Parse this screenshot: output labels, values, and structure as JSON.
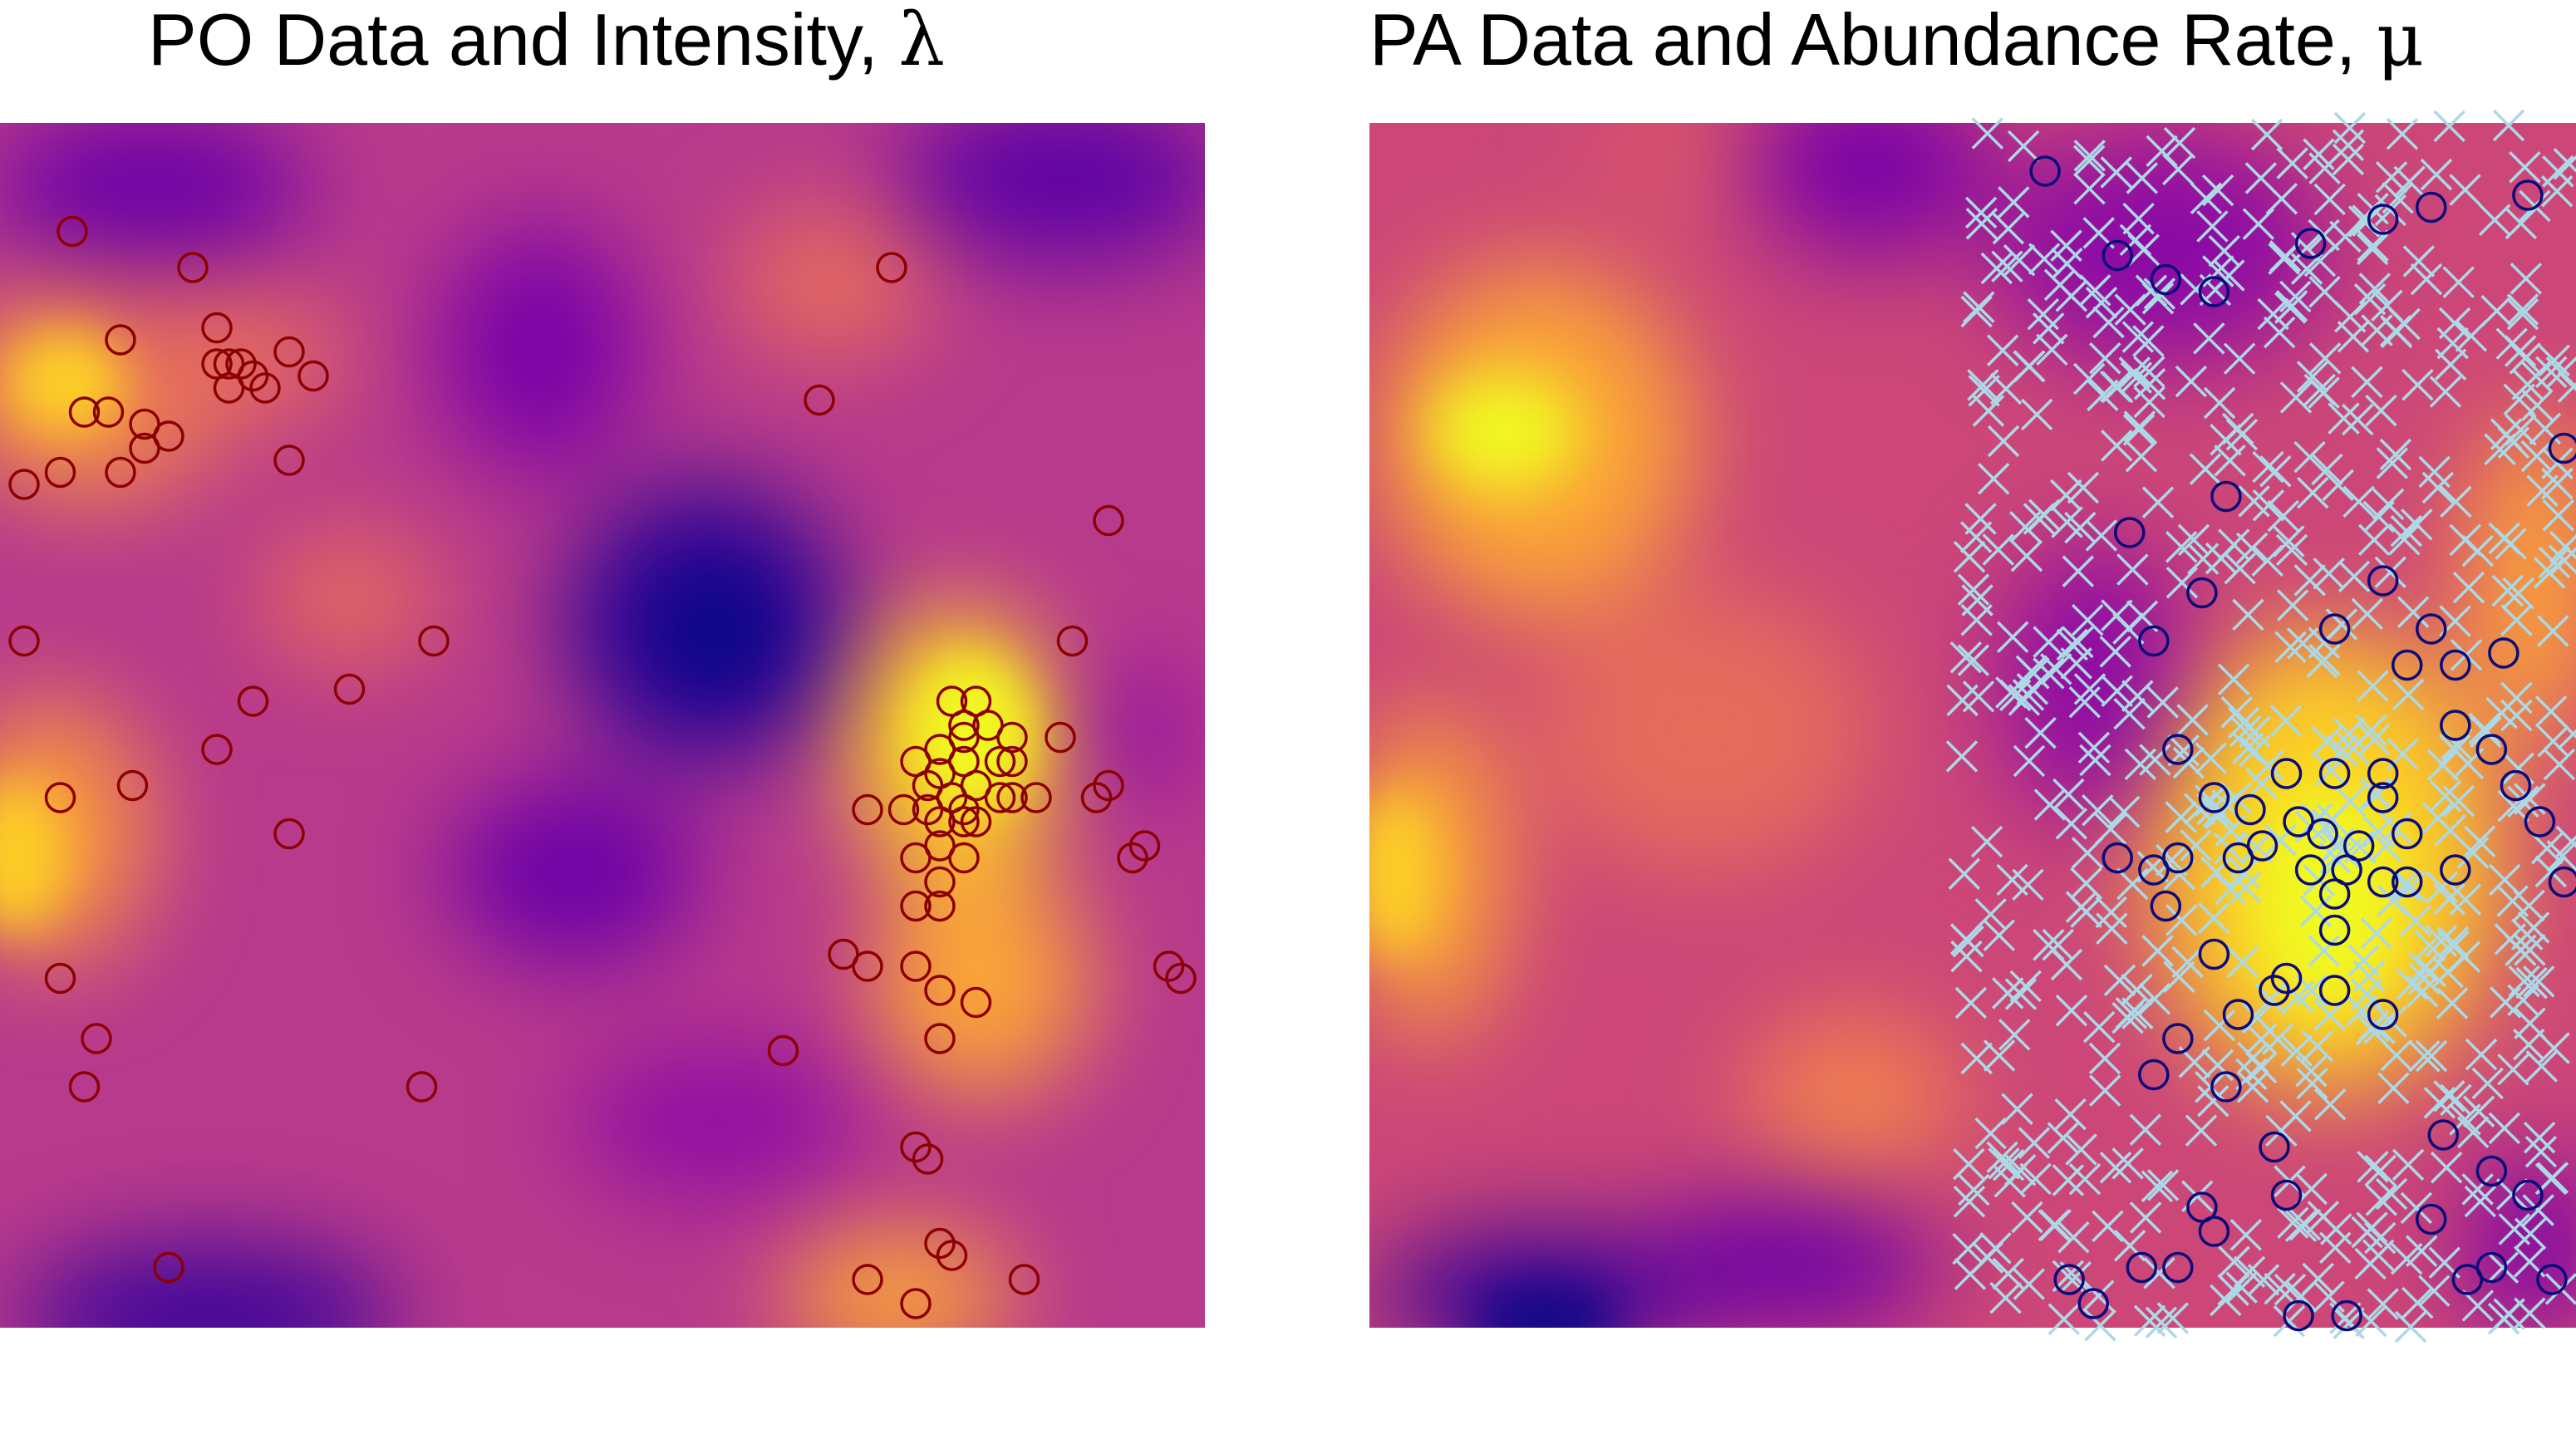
{
  "panels": [
    {
      "title": "PO Data and Intensity, ",
      "title_symbol": "λ",
      "colormap": "plasma",
      "marker": "circle",
      "marker_color": "#8b0000",
      "points": [
        [
          0.16,
          0.88
        ],
        [
          0.06,
          0.91
        ],
        [
          0.1,
          0.82
        ],
        [
          0.07,
          0.76
        ],
        [
          0.09,
          0.76
        ],
        [
          0.12,
          0.75
        ],
        [
          0.14,
          0.74
        ],
        [
          0.12,
          0.73
        ],
        [
          0.05,
          0.71
        ],
        [
          0.02,
          0.7
        ],
        [
          0.1,
          0.71
        ],
        [
          0.18,
          0.83
        ],
        [
          0.18,
          0.8
        ],
        [
          0.19,
          0.8
        ],
        [
          0.2,
          0.8
        ],
        [
          0.21,
          0.79
        ],
        [
          0.22,
          0.78
        ],
        [
          0.19,
          0.78
        ],
        [
          0.24,
          0.81
        ],
        [
          0.26,
          0.79
        ],
        [
          0.24,
          0.72
        ],
        [
          0.02,
          0.57
        ],
        [
          0.29,
          0.53
        ],
        [
          0.36,
          0.57
        ],
        [
          0.21,
          0.52
        ],
        [
          0.18,
          0.48
        ],
        [
          0.05,
          0.44
        ],
        [
          0.11,
          0.45
        ],
        [
          0.24,
          0.41
        ],
        [
          0.05,
          0.29
        ],
        [
          0.08,
          0.24
        ],
        [
          0.07,
          0.2
        ],
        [
          0.35,
          0.2
        ],
        [
          0.14,
          0.05
        ],
        [
          0.74,
          0.88
        ],
        [
          0.68,
          0.77
        ],
        [
          0.92,
          0.67
        ],
        [
          0.89,
          0.57
        ],
        [
          0.79,
          0.52
        ],
        [
          0.81,
          0.52
        ],
        [
          0.8,
          0.5
        ],
        [
          0.82,
          0.5
        ],
        [
          0.84,
          0.49
        ],
        [
          0.78,
          0.48
        ],
        [
          0.8,
          0.49
        ],
        [
          0.76,
          0.47
        ],
        [
          0.78,
          0.46
        ],
        [
          0.8,
          0.47
        ],
        [
          0.83,
          0.47
        ],
        [
          0.84,
          0.47
        ],
        [
          0.77,
          0.45
        ],
        [
          0.79,
          0.44
        ],
        [
          0.81,
          0.45
        ],
        [
          0.83,
          0.44
        ],
        [
          0.86,
          0.44
        ],
        [
          0.88,
          0.49
        ],
        [
          0.75,
          0.43
        ],
        [
          0.77,
          0.43
        ],
        [
          0.78,
          0.42
        ],
        [
          0.8,
          0.43
        ],
        [
          0.8,
          0.42
        ],
        [
          0.81,
          0.42
        ],
        [
          0.72,
          0.43
        ],
        [
          0.84,
          0.44
        ],
        [
          0.92,
          0.45
        ],
        [
          0.91,
          0.44
        ],
        [
          0.78,
          0.4
        ],
        [
          0.8,
          0.39
        ],
        [
          0.76,
          0.39
        ],
        [
          0.78,
          0.37
        ],
        [
          0.95,
          0.4
        ],
        [
          0.94,
          0.39
        ],
        [
          0.76,
          0.35
        ],
        [
          0.78,
          0.35
        ],
        [
          0.7,
          0.31
        ],
        [
          0.72,
          0.3
        ],
        [
          0.76,
          0.3
        ],
        [
          0.78,
          0.28
        ],
        [
          0.81,
          0.27
        ],
        [
          0.78,
          0.24
        ],
        [
          0.97,
          0.3
        ],
        [
          0.98,
          0.29
        ],
        [
          0.65,
          0.23
        ],
        [
          0.76,
          0.15
        ],
        [
          0.77,
          0.14
        ],
        [
          0.78,
          0.07
        ],
        [
          0.79,
          0.06
        ],
        [
          0.72,
          0.04
        ],
        [
          0.76,
          0.02
        ],
        [
          0.85,
          0.04
        ]
      ]
    },
    {
      "title": "PA Data and Abundance Rate, ",
      "title_symbol": "μ",
      "colormap": "plasma",
      "marker": "circle",
      "marker_color": "#0a0a7a",
      "absence_marker": "cross",
      "absence_color": "#add8e6",
      "points": [
        [
          0.56,
          0.96
        ],
        [
          0.62,
          0.89
        ],
        [
          0.66,
          0.87
        ],
        [
          0.7,
          0.86
        ],
        [
          0.78,
          0.9
        ],
        [
          0.84,
          0.92
        ],
        [
          0.88,
          0.93
        ],
        [
          0.96,
          0.94
        ],
        [
          0.99,
          0.73
        ],
        [
          0.71,
          0.69
        ],
        [
          0.63,
          0.66
        ],
        [
          0.69,
          0.61
        ],
        [
          0.84,
          0.62
        ],
        [
          0.88,
          0.58
        ],
        [
          0.8,
          0.58
        ],
        [
          0.65,
          0.57
        ],
        [
          0.86,
          0.55
        ],
        [
          0.9,
          0.55
        ],
        [
          0.94,
          0.56
        ],
        [
          0.67,
          0.48
        ],
        [
          0.76,
          0.46
        ],
        [
          0.8,
          0.46
        ],
        [
          0.84,
          0.46
        ],
        [
          0.7,
          0.44
        ],
        [
          0.73,
          0.43
        ],
        [
          0.77,
          0.42
        ],
        [
          0.84,
          0.44
        ],
        [
          0.79,
          0.41
        ],
        [
          0.82,
          0.4
        ],
        [
          0.86,
          0.41
        ],
        [
          0.74,
          0.4
        ],
        [
          0.67,
          0.39
        ],
        [
          0.72,
          0.39
        ],
        [
          0.81,
          0.38
        ],
        [
          0.78,
          0.38
        ],
        [
          0.84,
          0.37
        ],
        [
          0.8,
          0.36
        ],
        [
          0.86,
          0.37
        ],
        [
          0.9,
          0.38
        ],
        [
          0.62,
          0.39
        ],
        [
          0.65,
          0.38
        ],
        [
          0.66,
          0.35
        ],
        [
          0.8,
          0.33
        ],
        [
          0.7,
          0.31
        ],
        [
          0.76,
          0.29
        ],
        [
          0.75,
          0.28
        ],
        [
          0.8,
          0.28
        ],
        [
          0.84,
          0.26
        ],
        [
          0.72,
          0.26
        ],
        [
          0.67,
          0.24
        ],
        [
          0.65,
          0.21
        ],
        [
          0.71,
          0.2
        ],
        [
          0.75,
          0.15
        ],
        [
          0.89,
          0.16
        ],
        [
          0.93,
          0.13
        ],
        [
          0.69,
          0.1
        ],
        [
          0.76,
          0.11
        ],
        [
          0.58,
          0.04
        ],
        [
          0.6,
          0.02
        ],
        [
          0.64,
          0.05
        ],
        [
          0.67,
          0.05
        ],
        [
          0.7,
          0.08
        ],
        [
          0.77,
          0.01
        ],
        [
          0.81,
          0.01
        ],
        [
          0.88,
          0.09
        ],
        [
          0.91,
          0.04
        ],
        [
          0.96,
          0.11
        ],
        [
          0.93,
          0.05
        ],
        [
          0.98,
          0.04
        ],
        [
          0.99,
          0.37
        ],
        [
          0.97,
          0.42
        ],
        [
          0.95,
          0.45
        ],
        [
          0.93,
          0.48
        ],
        [
          0.9,
          0.5
        ]
      ],
      "absence_region": [
        0.49,
        1.0
      ]
    }
  ]
}
